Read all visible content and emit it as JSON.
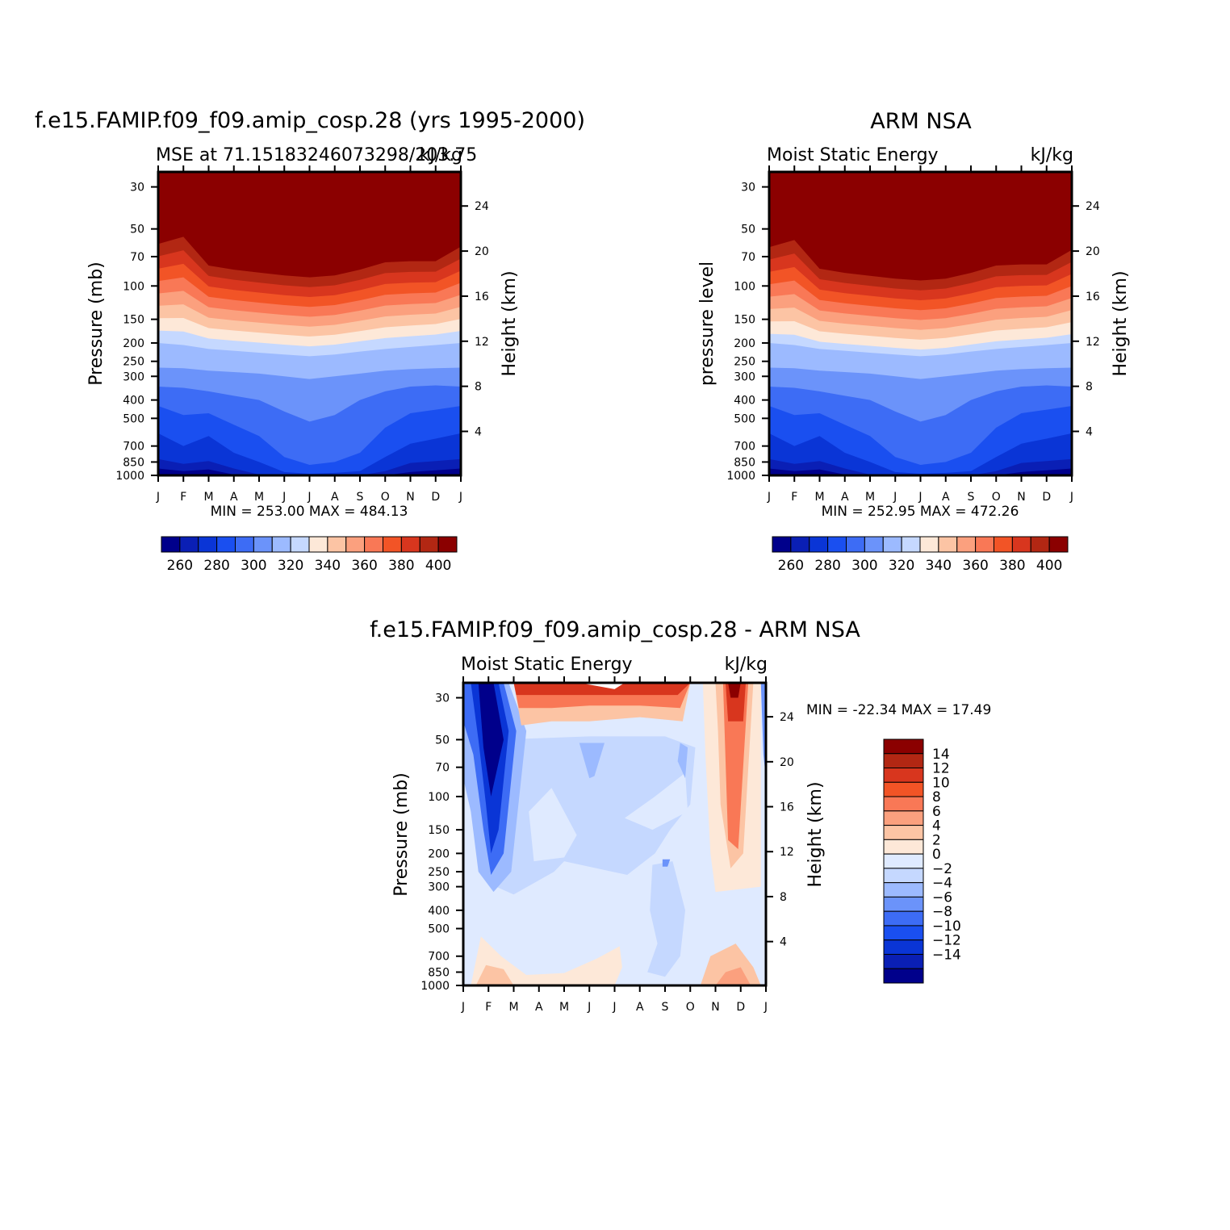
{
  "colors": {
    "abs_scale": [
      "#00008b",
      "#0a1fb5",
      "#0a35d6",
      "#1a4ff0",
      "#3d6cf5",
      "#6b93fa",
      "#9cbaff",
      "#c5d8ff",
      "#fde8d8",
      "#fcc4a4",
      "#fba07e",
      "#f97856",
      "#f25426",
      "#d8361e",
      "#b22713",
      "#8b0000"
    ],
    "diff_scale": [
      "#00008b",
      "#0a1fb5",
      "#0a35d6",
      "#1a4ff0",
      "#3d6cf5",
      "#6b93fa",
      "#9cbaff",
      "#c5d8ff",
      "#dfeaff",
      "#fde8d8",
      "#fcc4a4",
      "#fba07e",
      "#f97856",
      "#f25426",
      "#d8361e",
      "#b22713",
      "#8b0000"
    ]
  },
  "panels": {
    "model": {
      "title": "f.e15.FAMIP.f09_f09.amip_cosp.28 (yrs 1995-2000)",
      "left_label": "MSE at 71.15183246073298/203.75",
      "right_label": "kJ/kg",
      "ylabel": "Pressure (mb)",
      "y2label": "Height (km)",
      "minmax": "MIN = 253.00 MAX = 484.13"
    },
    "obs": {
      "title": "ARM NSA",
      "left_label": "Moist Static Energy",
      "right_label": "kJ/kg",
      "ylabel": "pressure level",
      "y2label": "Height (km)",
      "minmax": "MIN = 252.95 MAX = 472.26"
    },
    "diff": {
      "title": "f.e15.FAMIP.f09_f09.amip_cosp.28 - ARM NSA",
      "left_label": "Moist Static Energy",
      "right_label": "kJ/kg",
      "ylabel": "Pressure (mb)",
      "y2label": "Height (km)",
      "minmax": "MIN = -22.34 MAX =   17.49"
    }
  },
  "chart_data": [
    {
      "type": "heatmap",
      "name": "model",
      "title": "f.e15.FAMIP.f09_f09.amip_cosp.28 (yrs 1995-2000)",
      "subtitle": "MSE at 71.15183246073298/203.75",
      "units": "kJ/kg",
      "x_ticks": [
        "J",
        "F",
        "M",
        "A",
        "M",
        "J",
        "J",
        "A",
        "S",
        "O",
        "N",
        "D",
        "J"
      ],
      "y_ticks": [
        30,
        50,
        70,
        100,
        150,
        200,
        250,
        300,
        400,
        500,
        700,
        850,
        1000
      ],
      "y2_ticks": [
        4,
        8,
        12,
        16,
        20,
        24
      ],
      "ylim": [
        1000,
        25
      ],
      "colorbar_levels": [
        255,
        265,
        275,
        285,
        295,
        305,
        315,
        325,
        335,
        345,
        355,
        365,
        375,
        385,
        395
      ],
      "colorbar_labels": [
        "260",
        "280",
        "300",
        "320",
        "340",
        "360",
        "380",
        "400"
      ],
      "min": 253.0,
      "max": 484.13
    },
    {
      "type": "heatmap",
      "name": "obs",
      "title": "ARM NSA",
      "subtitle": "Moist Static Energy",
      "units": "kJ/kg",
      "x_ticks": [
        "J",
        "F",
        "M",
        "A",
        "M",
        "J",
        "J",
        "A",
        "S",
        "O",
        "N",
        "D",
        "J"
      ],
      "y_ticks": [
        30,
        50,
        70,
        100,
        150,
        200,
        250,
        300,
        400,
        500,
        700,
        850,
        1000
      ],
      "y2_ticks": [
        4,
        8,
        12,
        16,
        20,
        24
      ],
      "ylim": [
        1000,
        25
      ],
      "colorbar_levels": [
        255,
        265,
        275,
        285,
        295,
        305,
        315,
        325,
        335,
        345,
        355,
        365,
        375,
        385,
        395
      ],
      "colorbar_labels": [
        "260",
        "280",
        "300",
        "320",
        "340",
        "360",
        "380",
        "400"
      ],
      "min": 252.95,
      "max": 472.26
    },
    {
      "type": "heatmap",
      "name": "difference",
      "title": "f.e15.FAMIP.f09_f09.amip_cosp.28 - ARM NSA",
      "subtitle": "Moist Static Energy",
      "units": "kJ/kg",
      "x_ticks": [
        "J",
        "F",
        "M",
        "A",
        "M",
        "J",
        "J",
        "A",
        "S",
        "O",
        "N",
        "D",
        "J"
      ],
      "y_ticks": [
        30,
        50,
        70,
        100,
        150,
        200,
        250,
        300,
        400,
        500,
        700,
        850,
        1000
      ],
      "y2_ticks": [
        4,
        8,
        12,
        16,
        20,
        24
      ],
      "ylim": [
        1000,
        25
      ],
      "colorbar_levels": [
        -14,
        -12,
        -10,
        -8,
        -6,
        -4,
        -2,
        0,
        2,
        4,
        6,
        8,
        10,
        12,
        14
      ],
      "colorbar_labels": [
        "14",
        "12",
        "10",
        "8",
        "6",
        "4",
        "2",
        "0",
        "−2",
        "−4",
        "−6",
        "−8",
        "−10",
        "−12",
        "−14"
      ],
      "min": -22.34,
      "max": 17.49
    }
  ]
}
